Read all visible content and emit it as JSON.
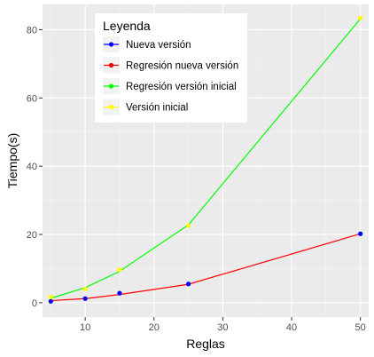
{
  "chart_data": {
    "type": "line",
    "xlabel": "Reglas",
    "ylabel": "Tiempo(s)",
    "xlim": [
      3.8,
      51.2
    ],
    "ylim": [
      -4.2,
      87.4
    ],
    "x_ticks": [
      10,
      20,
      30,
      40,
      50
    ],
    "y_ticks": [
      0,
      20,
      40,
      60,
      80
    ],
    "grid": true,
    "legend_title": "Leyenda",
    "legend_position": "top-left",
    "series": [
      {
        "name": "Nueva versión",
        "kind": "points",
        "color": "#0000ff",
        "x": [
          5,
          10,
          15,
          25,
          50
        ],
        "y": [
          0.4,
          1.2,
          2.8,
          5.5,
          20.2
        ]
      },
      {
        "name": "Regresión nueva versión",
        "kind": "line",
        "color": "#ff0000",
        "x": [
          5,
          10,
          15,
          25,
          50
        ],
        "y": [
          0.6,
          1.2,
          2.4,
          5.4,
          20.2
        ]
      },
      {
        "name": "Regresión versión inicial",
        "kind": "line",
        "color": "#00ff00",
        "x": [
          5,
          10,
          15,
          25,
          50
        ],
        "y": [
          1.3,
          4.4,
          9.2,
          22.8,
          83.2
        ]
      },
      {
        "name": "Versión inicial",
        "kind": "points",
        "color": "#ffff00",
        "x": [
          5,
          10,
          15,
          25,
          50
        ],
        "y": [
          1.7,
          4.0,
          9.7,
          22.6,
          83.4
        ]
      }
    ]
  }
}
